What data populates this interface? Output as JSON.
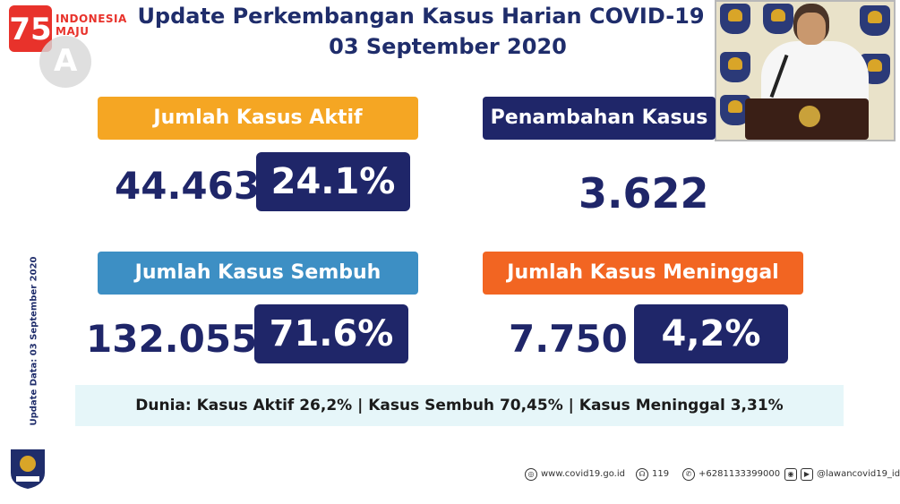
{
  "logo": {
    "line1": "INDONESIA",
    "line2": "MAJU"
  },
  "header": {
    "title": "Update Perkembangan Kasus Harian COVID-19",
    "date": "03 September 2020"
  },
  "cards": {
    "aktif": {
      "label": "Jumlah Kasus Aktif",
      "value": "44.463",
      "percent": "24.1%"
    },
    "penambahan": {
      "label": "Penambahan Kasus",
      "value": "3.622"
    },
    "sembuh": {
      "label": "Jumlah Kasus Sembuh",
      "value": "132.055",
      "percent": "71.6%"
    },
    "meninggal": {
      "label": "Jumlah Kasus Meninggal",
      "value": "7.750",
      "percent": "4,2%"
    }
  },
  "world": {
    "text": "Dunia: Kasus Aktif 26,2%  |  Kasus Sembuh 70,45%  |  Kasus Meninggal 3,31%"
  },
  "side": {
    "update_text": "Update Data: 03 September 2020"
  },
  "footer": {
    "website": "www.covid19.go.id",
    "hotline": "119",
    "whatsapp": "+6281133399000",
    "social": "@lawancovid19_id"
  },
  "colors": {
    "navy": "#1f2669",
    "orange": "#f5a623",
    "blue": "#3d8fc4",
    "red": "#f26522"
  }
}
